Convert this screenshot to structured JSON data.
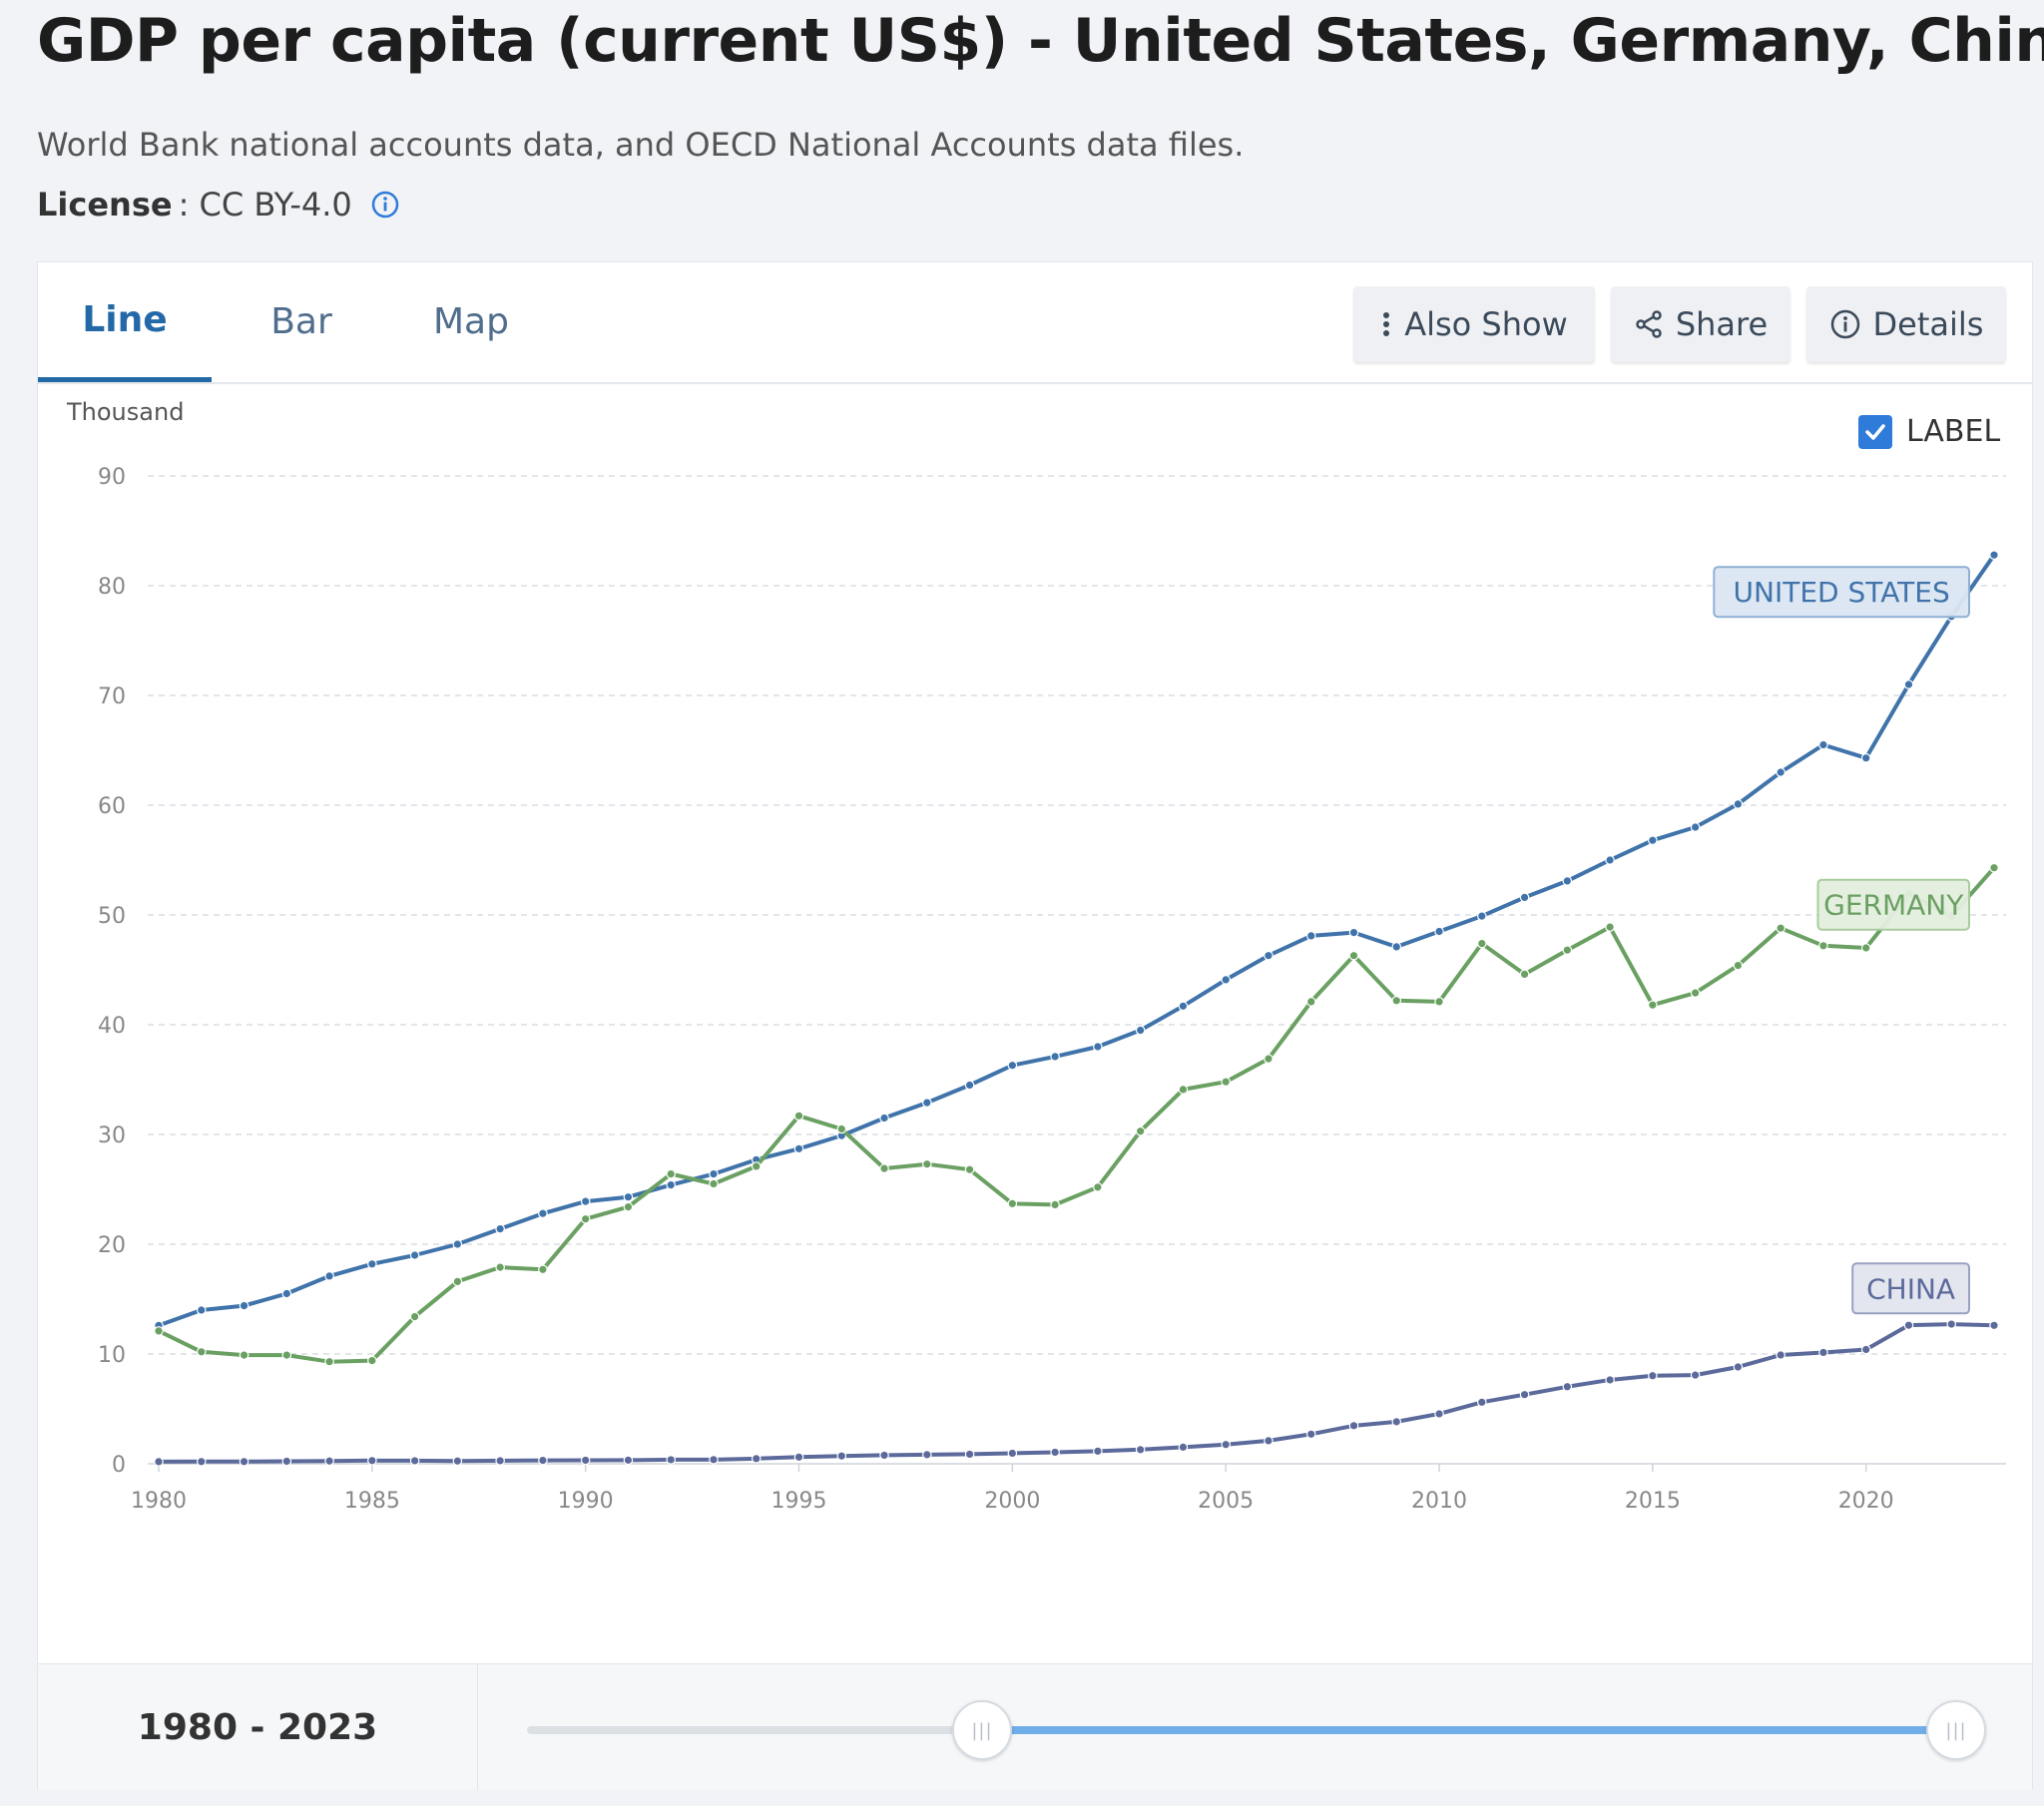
{
  "header": {
    "title": "GDP per capita (current US$) - United States, Germany, China",
    "source": "World Bank national accounts data, and OECD National Accounts data files.",
    "license_label": "License",
    "license_value": ": CC BY-4.0"
  },
  "tabs": [
    {
      "label": "Line",
      "active": true
    },
    {
      "label": "Bar",
      "active": false
    },
    {
      "label": "Map",
      "active": false
    }
  ],
  "toolbar": {
    "also_show": "Also Show",
    "share": "Share",
    "details": "Details"
  },
  "label_toggle": {
    "text": "LABEL",
    "checked": true
  },
  "range": {
    "text": "1980 - 2023",
    "start": 1980,
    "end": 2023,
    "min": 1960,
    "max": 2023
  },
  "colors": {
    "united_states": "#3f73aa",
    "germany": "#6aa062",
    "china": "#5b6a9a",
    "accent": "#2369a8"
  },
  "chart_data": {
    "type": "line",
    "title": "",
    "unit_label": "Thousand",
    "xlabel": "",
    "ylabel": "",
    "ylim": [
      0,
      90
    ],
    "yticks": [
      0,
      10,
      20,
      30,
      40,
      50,
      60,
      70,
      80,
      90
    ],
    "xticks": [
      1980,
      1985,
      1990,
      1995,
      2000,
      2005,
      2010,
      2015,
      2020
    ],
    "grid": true,
    "x": [
      1980,
      1981,
      1982,
      1983,
      1984,
      1985,
      1986,
      1987,
      1988,
      1989,
      1990,
      1991,
      1992,
      1993,
      1994,
      1995,
      1996,
      1997,
      1998,
      1999,
      2000,
      2001,
      2002,
      2003,
      2004,
      2005,
      2006,
      2007,
      2008,
      2009,
      2010,
      2011,
      2012,
      2013,
      2014,
      2015,
      2016,
      2017,
      2018,
      2019,
      2020,
      2021,
      2022,
      2023
    ],
    "series": [
      {
        "name": "UNITED STATES",
        "color": "#3f73aa",
        "values": [
          12.6,
          14.0,
          14.4,
          15.5,
          17.1,
          18.2,
          19.0,
          20.0,
          21.4,
          22.8,
          23.9,
          24.3,
          25.4,
          26.4,
          27.7,
          28.7,
          29.9,
          31.5,
          32.9,
          34.5,
          36.3,
          37.1,
          38.0,
          39.5,
          41.7,
          44.1,
          46.3,
          48.1,
          48.4,
          47.1,
          48.5,
          49.9,
          51.6,
          53.1,
          55.0,
          56.8,
          58.0,
          60.1,
          63.0,
          65.5,
          64.3,
          71.0,
          77.2,
          82.8
        ]
      },
      {
        "name": "GERMANY",
        "color": "#6aa062",
        "values": [
          12.1,
          10.2,
          9.9,
          9.9,
          9.3,
          9.4,
          13.4,
          16.6,
          17.9,
          17.7,
          22.3,
          23.4,
          26.4,
          25.5,
          27.1,
          31.7,
          30.5,
          26.9,
          27.3,
          26.8,
          23.7,
          23.6,
          25.2,
          30.3,
          34.1,
          34.8,
          36.9,
          42.1,
          46.3,
          42.2,
          42.1,
          47.4,
          44.6,
          46.8,
          48.9,
          41.8,
          42.9,
          45.4,
          48.8,
          47.2,
          47.0,
          51.9,
          49.9,
          54.3
        ]
      },
      {
        "name": "CHINA",
        "color": "#5b6a9a",
        "values": [
          0.19,
          0.2,
          0.2,
          0.23,
          0.25,
          0.29,
          0.28,
          0.25,
          0.28,
          0.31,
          0.32,
          0.33,
          0.37,
          0.38,
          0.47,
          0.61,
          0.71,
          0.78,
          0.83,
          0.87,
          0.96,
          1.05,
          1.15,
          1.29,
          1.51,
          1.75,
          2.1,
          2.7,
          3.47,
          3.83,
          4.55,
          5.61,
          6.3,
          7.02,
          7.64,
          8.02,
          8.08,
          8.82,
          9.91,
          10.14,
          10.41,
          12.62,
          12.72,
          12.61
        ]
      }
    ]
  }
}
